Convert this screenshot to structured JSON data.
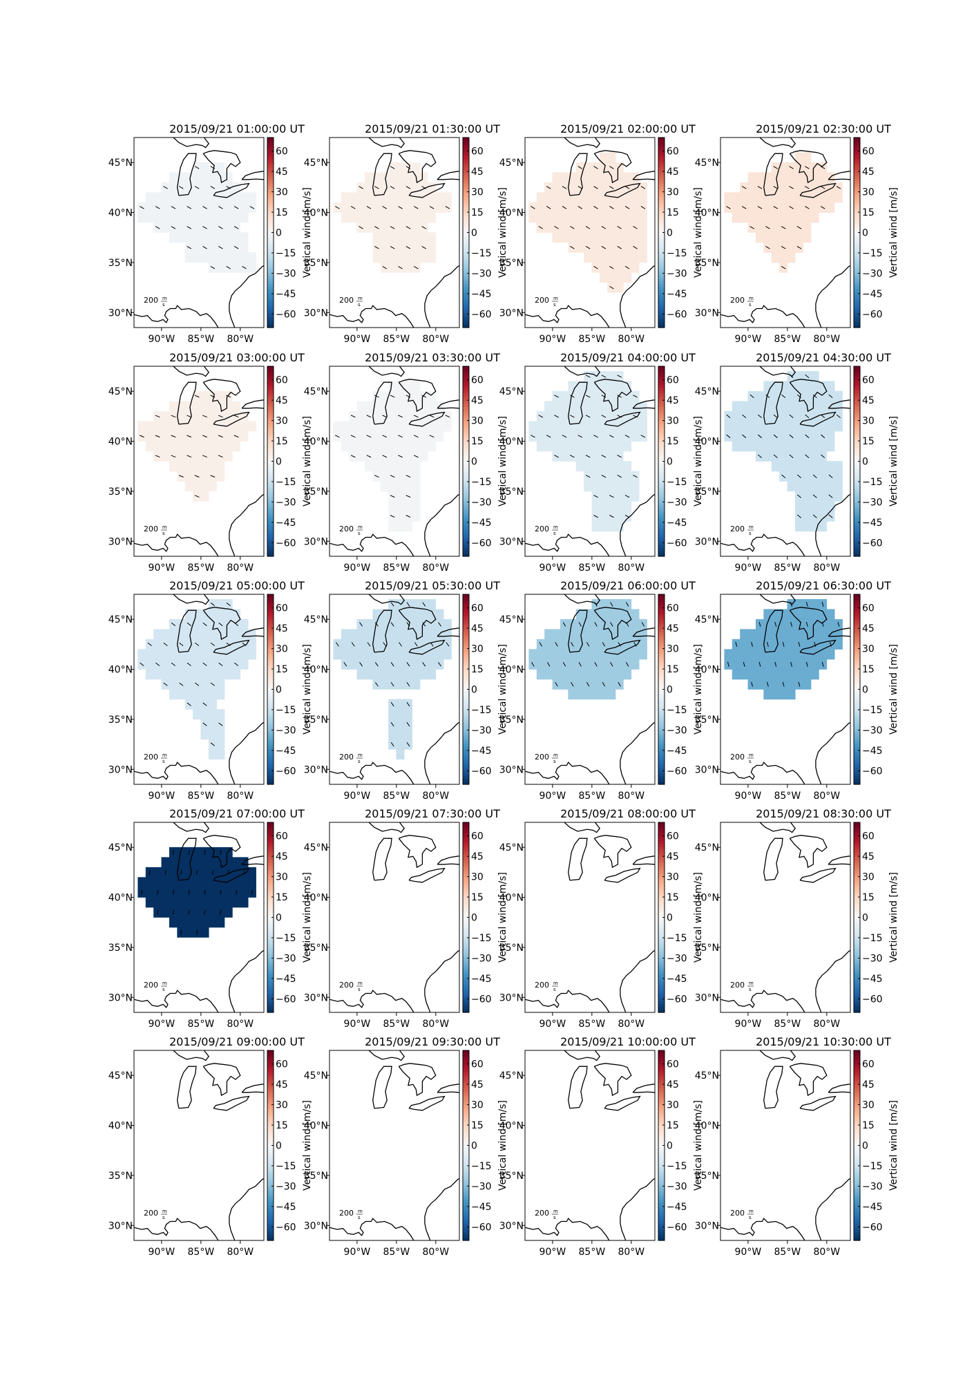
{
  "figure": {
    "colorbar_label": "Vertical wind [m/s]",
    "colorbar_ticks": [
      "60",
      "45",
      "30",
      "15",
      "0",
      "−15",
      "−30",
      "−45",
      "−60"
    ],
    "colorbar_tick_values": [
      60,
      45,
      30,
      15,
      0,
      -15,
      -30,
      -45,
      -60
    ],
    "colorbar_range": [
      -70,
      70
    ],
    "colormap": "RdBu_r",
    "lat_ticks": [
      "45°N",
      "40°N",
      "35°N",
      "30°N"
    ],
    "lon_ticks": [
      "90°W",
      "85°W",
      "80°W"
    ],
    "scale_label": "200",
    "scale_unit_num": "m",
    "scale_unit_den": "s",
    "map_extent": {
      "lon": [
        -93.5,
        -77
      ],
      "lat": [
        28.5,
        47.5
      ]
    },
    "coastline_color": "#000000"
  },
  "panels": [
    {
      "title": "2015/09/21 01:00:00 UT",
      "mean_vertical_wind": -3
    },
    {
      "title": "2015/09/21 01:30:00 UT",
      "mean_vertical_wind": 4
    },
    {
      "title": "2015/09/21 02:00:00 UT",
      "mean_vertical_wind": 7
    },
    {
      "title": "2015/09/21 02:30:00 UT",
      "mean_vertical_wind": 9
    },
    {
      "title": "2015/09/21 03:00:00 UT",
      "mean_vertical_wind": 4
    },
    {
      "title": "2015/09/21 03:30:00 UT",
      "mean_vertical_wind": -2
    },
    {
      "title": "2015/09/21 04:00:00 UT",
      "mean_vertical_wind": -10
    },
    {
      "title": "2015/09/21 04:30:00 UT",
      "mean_vertical_wind": -15
    },
    {
      "title": "2015/09/21 05:00:00 UT",
      "mean_vertical_wind": -13
    },
    {
      "title": "2015/09/21 05:30:00 UT",
      "mean_vertical_wind": -16
    },
    {
      "title": "2015/09/21 06:00:00 UT",
      "mean_vertical_wind": -25
    },
    {
      "title": "2015/09/21 06:30:00 UT",
      "mean_vertical_wind": -35
    },
    {
      "title": "2015/09/21 07:00:00 UT",
      "mean_vertical_wind": -70
    },
    {
      "title": "2015/09/21 07:30:00 UT",
      "mean_vertical_wind": null
    },
    {
      "title": "2015/09/21 08:00:00 UT",
      "mean_vertical_wind": null
    },
    {
      "title": "2015/09/21 08:30:00 UT",
      "mean_vertical_wind": null
    },
    {
      "title": "2015/09/21 09:00:00 UT",
      "mean_vertical_wind": null
    },
    {
      "title": "2015/09/21 09:30:00 UT",
      "mean_vertical_wind": null
    },
    {
      "title": "2015/09/21 10:00:00 UT",
      "mean_vertical_wind": null
    },
    {
      "title": "2015/09/21 10:30:00 UT",
      "mean_vertical_wind": null
    }
  ]
}
